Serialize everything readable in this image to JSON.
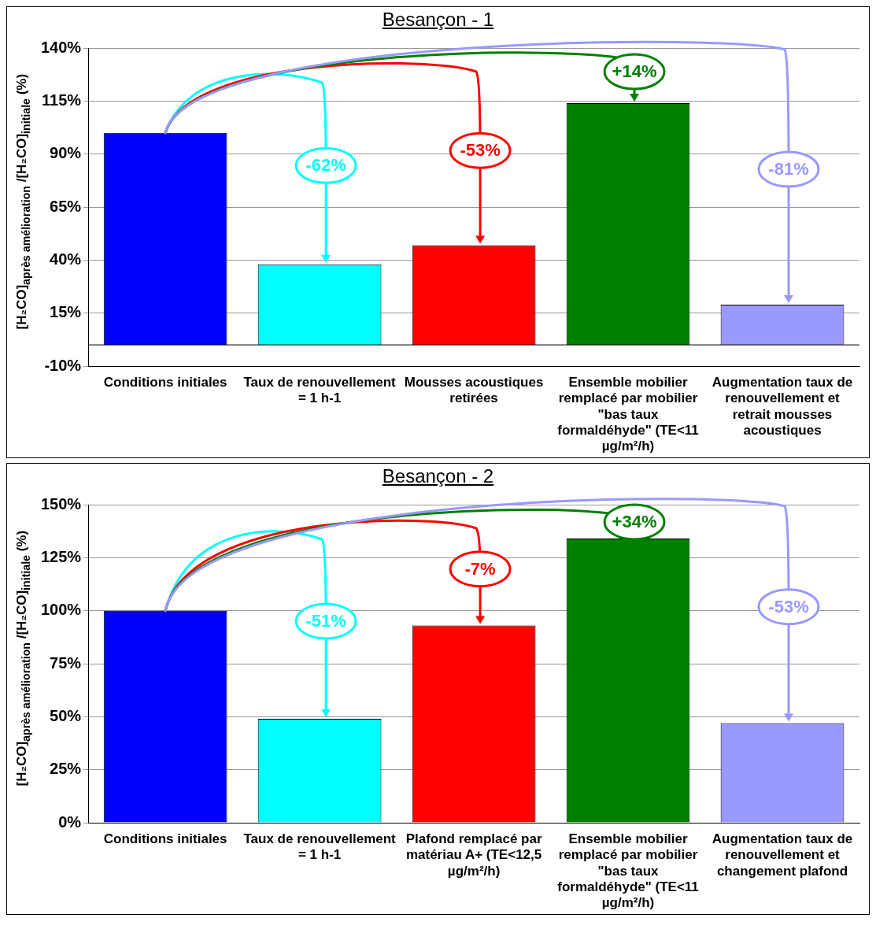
{
  "chart_data": [
    {
      "type": "bar",
      "title": "Besançon - 1",
      "ylabel": "[H₂CO]$_{après amélioration}$ /[H₂CO]$_{initiale}$ (%)",
      "categories": [
        "Conditions initiales",
        "Taux de renouvellement = 1 h-1",
        "Mousses acoustiques retirées",
        "Ensemble mobilier remplacé par mobilier \"bas taux formaldéhyde\" (TE<11 µg/m²/h)",
        "Augmentation taux de renouvellement et retrait mousses acoustiques"
      ],
      "values": [
        100,
        38,
        47,
        114,
        19
      ],
      "colors": [
        "#0000ff",
        "#00ffff",
        "#ff0000",
        "#008000",
        "#9999ff"
      ],
      "ylim": [
        -10,
        140
      ],
      "yticks": [
        {
          "value": -10,
          "label": "-10%"
        },
        {
          "value": 15,
          "label": "15%"
        },
        {
          "value": 40,
          "label": "40%"
        },
        {
          "value": 65,
          "label": "65%"
        },
        {
          "value": 90,
          "label": "90%"
        },
        {
          "value": 115,
          "label": "115%"
        },
        {
          "value": 140,
          "label": "140%"
        }
      ],
      "grid": "y",
      "legend": false,
      "annotations": [
        "-62%",
        "-53%",
        "+14%",
        "-81%"
      ]
    },
    {
      "type": "bar",
      "title": "Besançon - 2",
      "ylabel": "[H₂CO]$_{après amélioration}$ /[H₂CO]$_{initiale}$ (%)",
      "categories": [
        "Conditions initiales",
        "Taux de renouvellement = 1 h-1",
        "Plafond remplacé par matériau A+ (TE<12,5 µg/m²/h)",
        "Ensemble mobilier remplacé par mobilier \"bas taux formaldéhyde\" (TE<11 µg/m²/h)",
        "Augmentation taux de renouvellement et changement plafond"
      ],
      "values": [
        100,
        49,
        93,
        134,
        47
      ],
      "colors": [
        "#0000ff",
        "#00ffff",
        "#ff0000",
        "#008000",
        "#9999ff"
      ],
      "ylim": [
        0,
        150
      ],
      "yticks": [
        {
          "value": 0,
          "label": "0%"
        },
        {
          "value": 25,
          "label": "25%"
        },
        {
          "value": 50,
          "label": "50%"
        },
        {
          "value": 75,
          "label": "75%"
        },
        {
          "value": 100,
          "label": "100%"
        },
        {
          "value": 125,
          "label": "125%"
        },
        {
          "value": 150,
          "label": "150%"
        }
      ],
      "grid": "y",
      "legend": false,
      "annotations": [
        "-51%",
        "-7%",
        "+34%",
        "-53%"
      ]
    }
  ]
}
